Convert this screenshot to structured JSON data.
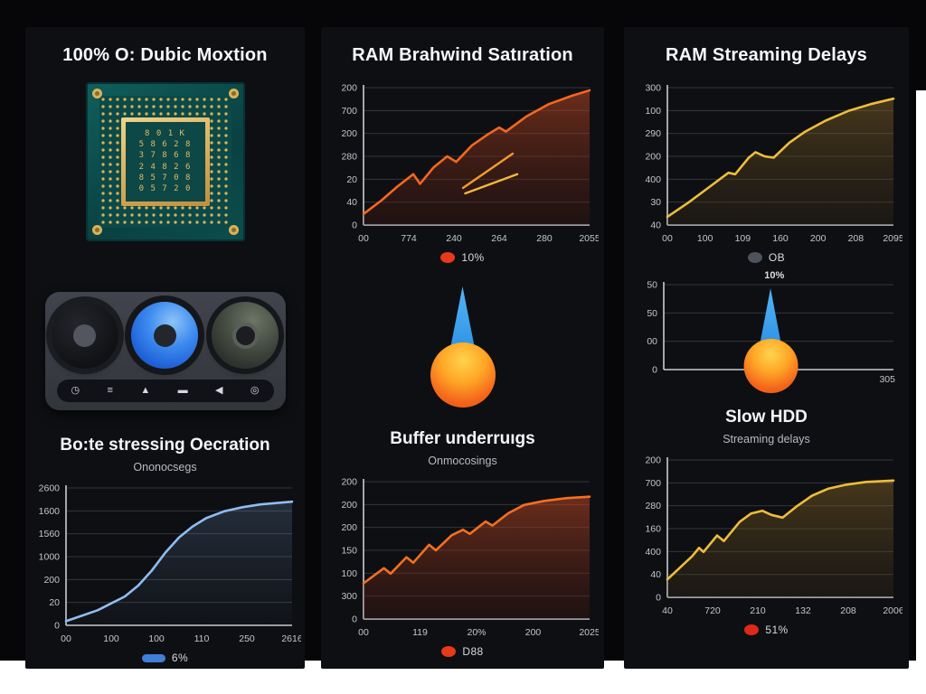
{
  "colors": {
    "backdrop": "#060609",
    "card_bg": "#0e0f13",
    "blue_line": "#8fbdf0",
    "orange_line": "#f4671f",
    "yellow_line": "#edbe3a",
    "legend_blue": "#3f7fd6",
    "legend_red": "#e8391d",
    "legend_gray": "#4d525b",
    "droplet_blue": "#2f98e8",
    "droplet_orange": "#f4661c"
  },
  "left_panel": {
    "title": "100% O: Dubic Moxtion",
    "chip_rows": [
      "8 0 1 K",
      "5 8 6 2 8",
      "3 7 8 6 8",
      "2 4 8 2 6",
      "8 5 7 0 8",
      "0 5 7 2 0"
    ],
    "knob_icons": [
      {
        "name": "clock-icon",
        "glyph": "◷"
      },
      {
        "name": "queue-icon",
        "glyph": "≡"
      },
      {
        "name": "upload-icon",
        "glyph": "▲"
      },
      {
        "name": "display-icon",
        "glyph": "▬"
      },
      {
        "name": "speaker-icon",
        "glyph": "◀"
      },
      {
        "name": "disc-icon",
        "glyph": "◎"
      }
    ],
    "heading": "Bo:te stressing Oecration",
    "subtitle": "Ononocsegs"
  },
  "middle_panel": {
    "title": "RAM Brahwind Satıration",
    "heading": "Buffer underruıgs",
    "subtitle": "Onmocosings"
  },
  "right_panel": {
    "title": "RAM Streaming Delays",
    "heading": "Slow HDD",
    "subtitle": "Streaming delays",
    "gauge_annotation": "10%"
  },
  "chart_data": [
    {
      "id": "cpu-usage",
      "type": "area",
      "title": "Bo:te stressing Oecration",
      "color": "#8fbdf0",
      "fill_top": "rgba(125,170,220,0.20)",
      "fill_bottom": "rgba(125,170,220,0.02)",
      "y_ticks": [
        "2600",
        "1600",
        "1560",
        "1000",
        "200",
        "20",
        "0"
      ],
      "x_ticks": [
        "00",
        "100",
        "100",
        "110",
        "250",
        "2616"
      ],
      "points": [
        [
          0,
          3
        ],
        [
          7,
          7
        ],
        [
          14,
          11
        ],
        [
          20,
          16
        ],
        [
          26,
          21
        ],
        [
          32,
          29
        ],
        [
          38,
          40
        ],
        [
          44,
          53
        ],
        [
          50,
          64
        ],
        [
          56,
          72
        ],
        [
          62,
          78
        ],
        [
          70,
          83
        ],
        [
          78,
          86
        ],
        [
          86,
          88
        ],
        [
          93,
          89
        ],
        [
          100,
          90
        ]
      ],
      "legend": {
        "shape": "pill",
        "color": "#3f7fd6",
        "label": "6%"
      }
    },
    {
      "id": "ram-saturation",
      "type": "area",
      "title": "RAM Brahwind Satıration",
      "color": "#f4671f",
      "fill_top": "rgba(185,70,35,0.55)",
      "fill_bottom": "rgba(70,25,15,0.30)",
      "y_ticks": [
        "200",
        "700",
        "200",
        "280",
        "20",
        "40",
        "0"
      ],
      "x_ticks": [
        "00",
        "774",
        "240",
        "264",
        "280",
        "2055"
      ],
      "points": [
        [
          0,
          8
        ],
        [
          8,
          18
        ],
        [
          15,
          28
        ],
        [
          22,
          37
        ],
        [
          25,
          30
        ],
        [
          31,
          42
        ],
        [
          37,
          50
        ],
        [
          41,
          46
        ],
        [
          48,
          58
        ],
        [
          55,
          66
        ],
        [
          60,
          71
        ],
        [
          63,
          68
        ],
        [
          72,
          79
        ],
        [
          82,
          88
        ],
        [
          92,
          94
        ],
        [
          100,
          98
        ]
      ],
      "extra_segments": [
        {
          "p": [
            [
              44,
              27
            ],
            [
              66,
              52
            ]
          ],
          "color": "#f49b2b"
        },
        {
          "p": [
            [
              45,
              23
            ],
            [
              68,
              37
            ]
          ],
          "color": "#f4b83a"
        }
      ],
      "legend": {
        "shape": "dot",
        "color": "#e8391d",
        "label": "10%"
      }
    },
    {
      "id": "streaming-delays",
      "type": "area",
      "title": "RAM Streaming Delays",
      "color": "#edbe3a",
      "fill_top": "rgba(150,112,40,0.42)",
      "fill_bottom": "rgba(60,45,22,0.28)",
      "y_ticks": [
        "300",
        "100",
        "290",
        "200",
        "400",
        "30",
        "40"
      ],
      "x_ticks": [
        "00",
        "100",
        "109",
        "160",
        "200",
        "208",
        "2095"
      ],
      "points": [
        [
          0,
          6
        ],
        [
          9,
          16
        ],
        [
          18,
          27
        ],
        [
          27,
          38
        ],
        [
          30,
          37
        ],
        [
          36,
          49
        ],
        [
          39,
          53
        ],
        [
          43,
          50
        ],
        [
          47,
          49
        ],
        [
          54,
          60
        ],
        [
          61,
          68
        ],
        [
          70,
          76
        ],
        [
          80,
          83
        ],
        [
          90,
          88
        ],
        [
          100,
          92
        ]
      ],
      "legend": {
        "shape": "dot",
        "color": "#4d525b",
        "label": "OB"
      }
    },
    {
      "id": "hdd-gauge",
      "type": "axes",
      "title": "Slow HDD gauge",
      "y_ticks": [
        "50",
        "50",
        "00",
        "0"
      ],
      "corner_label": "305",
      "margin_left": 36
    },
    {
      "id": "buffer-underruns",
      "type": "area",
      "title": "Buffer underruıgs",
      "color": "#f4701f",
      "fill_top": "rgba(185,70,35,0.55)",
      "fill_bottom": "rgba(70,25,15,0.30)",
      "y_ticks": [
        "200",
        "200",
        "200",
        "150",
        "100",
        "300",
        "0"
      ],
      "x_ticks": [
        "00",
        "119",
        "20%",
        "200",
        "2025"
      ],
      "points": [
        [
          0,
          26
        ],
        [
          9,
          37
        ],
        [
          12,
          33
        ],
        [
          19,
          45
        ],
        [
          22,
          41
        ],
        [
          29,
          54
        ],
        [
          32,
          50
        ],
        [
          39,
          61
        ],
        [
          44,
          65
        ],
        [
          47,
          62
        ],
        [
          54,
          71
        ],
        [
          57,
          68
        ],
        [
          64,
          77
        ],
        [
          71,
          83
        ],
        [
          80,
          86
        ],
        [
          90,
          88
        ],
        [
          100,
          89
        ]
      ],
      "legend": {
        "shape": "dot",
        "color": "#e8391d",
        "label": "D88"
      }
    },
    {
      "id": "slow-hdd",
      "type": "area",
      "title": "Slow HDD",
      "color": "#edbe3a",
      "fill_top": "rgba(150,112,40,0.42)",
      "fill_bottom": "rgba(60,45,22,0.28)",
      "y_ticks": [
        "200",
        "700",
        "280",
        "160",
        "400",
        "40",
        "0"
      ],
      "x_ticks": [
        "40",
        "720",
        "210",
        "132",
        "208",
        "2006"
      ],
      "points": [
        [
          0,
          13
        ],
        [
          11,
          30
        ],
        [
          14,
          36
        ],
        [
          16,
          33
        ],
        [
          22,
          45
        ],
        [
          25,
          41
        ],
        [
          32,
          55
        ],
        [
          37,
          61
        ],
        [
          42,
          63
        ],
        [
          46,
          60
        ],
        [
          51,
          58
        ],
        [
          57,
          66
        ],
        [
          64,
          74
        ],
        [
          71,
          79
        ],
        [
          79,
          82
        ],
        [
          88,
          84
        ],
        [
          100,
          85
        ]
      ],
      "legend": {
        "shape": "dot",
        "color": "#e02818",
        "label": "51%"
      }
    }
  ]
}
